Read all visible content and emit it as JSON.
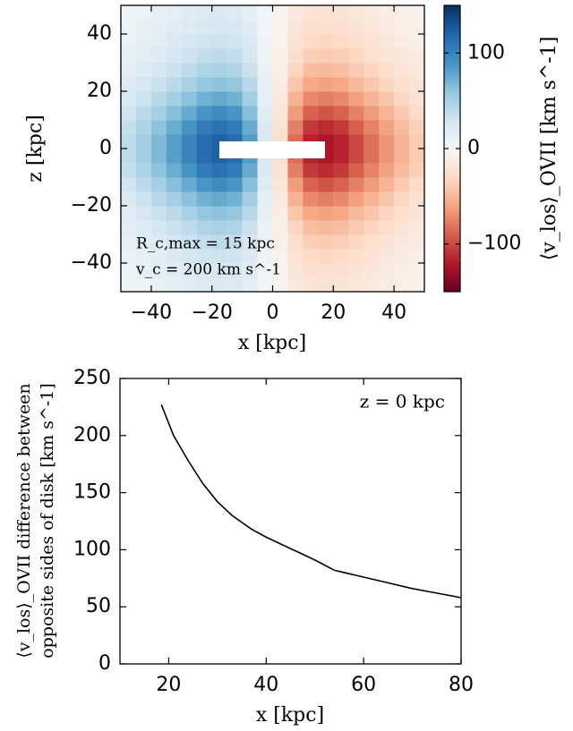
{
  "chart_data": [
    {
      "type": "heatmap",
      "xlabel": "x [kpc]",
      "ylabel": "z [kpc]",
      "colorbar_label": "⟨v_los⟩_OVII [km s^-1]",
      "annotations": [
        "R_c,max = 15 kpc",
        "v_c = 200 km s^-1"
      ],
      "xlim": [
        -50,
        50
      ],
      "ylim": [
        -50,
        50
      ],
      "xticks": [
        {
          "value": -40,
          "label": "−40"
        },
        {
          "value": -20,
          "label": "−20"
        },
        0,
        20,
        40
      ],
      "yticks": [
        {
          "value": -40,
          "label": "−40"
        },
        {
          "value": -20,
          "label": "−20"
        },
        0,
        20,
        40
      ],
      "clim": [
        -150,
        150
      ],
      "cticks": [
        {
          "value": -100,
          "label": "−100"
        },
        0,
        100
      ],
      "colormap": [
        "#67001f",
        "#b2182b",
        "#d6604d",
        "#f4a582",
        "#fddbc7",
        "#f7f7f7",
        "#d1e5f0",
        "#92c5de",
        "#4393c3",
        "#2166ac",
        "#053061"
      ],
      "x": [
        -47.5,
        -42.5,
        -37.5,
        -32.5,
        -27.5,
        -22.5,
        -17.5,
        -12.5,
        -7.5,
        -2.5,
        2.5,
        7.5,
        12.5,
        17.5,
        22.5,
        27.5,
        32.5,
        37.5,
        42.5,
        47.5
      ],
      "y": [
        -47.5,
        -42.5,
        -37.5,
        -32.5,
        -27.5,
        -22.5,
        -17.5,
        -12.5,
        -7.5,
        -2.5,
        2.5,
        7.5,
        12.5,
        17.5,
        22.5,
        27.5,
        32.5,
        37.5,
        42.5,
        47.5
      ],
      "values": [
        [
          7,
          9,
          12,
          15,
          18,
          21,
          22,
          21,
          15,
          4,
          -4,
          -15,
          -21,
          -22,
          -21,
          -18,
          -15,
          -12,
          -9,
          -7
        ],
        [
          8,
          11,
          14,
          18,
          21,
          25,
          26,
          25,
          18,
          5,
          -5,
          -18,
          -25,
          -26,
          -25,
          -21,
          -18,
          -14,
          -11,
          -8
        ],
        [
          10,
          14,
          17,
          22,
          26,
          30,
          32,
          30,
          22,
          6,
          -6,
          -22,
          -30,
          -32,
          -30,
          -26,
          -22,
          -17,
          -14,
          -10
        ],
        [
          13,
          17,
          21,
          26,
          32,
          37,
          39,
          37,
          27,
          8,
          -8,
          -27,
          -37,
          -39,
          -37,
          -32,
          -26,
          -21,
          -17,
          -13
        ],
        [
          16,
          21,
          27,
          33,
          39,
          46,
          49,
          46,
          33,
          10,
          -10,
          -33,
          -46,
          -49,
          -46,
          -39,
          -33,
          -27,
          -21,
          -16
        ],
        [
          20,
          26,
          33,
          41,
          49,
          58,
          61,
          58,
          42,
          12,
          -12,
          -42,
          -58,
          -61,
          -58,
          -49,
          -41,
          -33,
          -26,
          -20
        ],
        [
          24,
          32,
          42,
          51,
          62,
          72,
          77,
          72,
          52,
          15,
          -15,
          -52,
          -72,
          -77,
          -72,
          -62,
          -51,
          -42,
          -32,
          -24
        ],
        [
          30,
          40,
          51,
          64,
          76,
          89,
          95,
          89,
          64,
          19,
          -19,
          -64,
          -89,
          -95,
          -89,
          -76,
          -64,
          -51,
          -40,
          -30
        ],
        [
          36,
          47,
          61,
          75,
          90,
          106,
          112,
          106,
          76,
          22,
          -22,
          -76,
          -106,
          -112,
          -106,
          -90,
          -75,
          -61,
          -47,
          -36
        ],
        [
          39,
          52,
          67,
          83,
          100,
          116,
          123,
          116,
          84,
          25,
          -25,
          -84,
          -116,
          -123,
          -116,
          -100,
          -83,
          -67,
          -52,
          -39
        ],
        [
          39,
          52,
          67,
          83,
          100,
          116,
          123,
          116,
          84,
          25,
          -25,
          -84,
          -116,
          -123,
          -116,
          -100,
          -83,
          -67,
          -52,
          -39
        ],
        [
          36,
          47,
          61,
          75,
          90,
          106,
          112,
          106,
          76,
          22,
          -22,
          -76,
          -106,
          -112,
          -106,
          -90,
          -75,
          -61,
          -47,
          -36
        ],
        [
          30,
          40,
          51,
          64,
          76,
          89,
          95,
          89,
          64,
          19,
          -19,
          -64,
          -89,
          -95,
          -89,
          -76,
          -64,
          -51,
          -40,
          -30
        ],
        [
          24,
          32,
          42,
          51,
          62,
          72,
          77,
          72,
          52,
          15,
          -15,
          -52,
          -72,
          -77,
          -72,
          -62,
          -51,
          -42,
          -32,
          -24
        ],
        [
          20,
          26,
          33,
          41,
          49,
          58,
          61,
          58,
          42,
          12,
          -12,
          -42,
          -58,
          -61,
          -58,
          -49,
          -41,
          -33,
          -26,
          -20
        ],
        [
          16,
          21,
          27,
          33,
          39,
          46,
          49,
          46,
          33,
          10,
          -10,
          -33,
          -46,
          -49,
          -46,
          -39,
          -33,
          -27,
          -21,
          -16
        ],
        [
          13,
          17,
          21,
          26,
          32,
          37,
          39,
          37,
          27,
          8,
          -8,
          -27,
          -37,
          -39,
          -37,
          -32,
          -26,
          -21,
          -17,
          -13
        ],
        [
          10,
          14,
          17,
          22,
          26,
          30,
          32,
          30,
          22,
          6,
          -6,
          -22,
          -30,
          -32,
          -30,
          -26,
          -22,
          -17,
          -14,
          -10
        ],
        [
          8,
          11,
          14,
          18,
          21,
          25,
          26,
          25,
          18,
          5,
          -5,
          -18,
          -25,
          -26,
          -25,
          -21,
          -18,
          -14,
          -11,
          -8
        ],
        [
          7,
          9,
          12,
          15,
          18,
          21,
          22,
          21,
          15,
          4,
          -4,
          -15,
          -21,
          -22,
          -21,
          -18,
          -15,
          -12,
          -9,
          -7
        ]
      ]
    },
    {
      "type": "line",
      "xlabel": "x [kpc]",
      "ylabel": [
        "⟨v_los⟩_OVII difference between",
        "opposite sides of disk [km s^-1]"
      ],
      "annotation": "z = 0 kpc",
      "color": "#000000",
      "xlim": [
        10,
        80
      ],
      "ylim": [
        0,
        250
      ],
      "xticks": [
        20,
        40,
        60,
        80
      ],
      "yticks": [
        0,
        50,
        100,
        150,
        200,
        250
      ],
      "x": [
        18.5,
        21,
        24,
        27,
        30,
        33,
        37,
        40,
        45,
        50,
        54,
        60,
        65,
        70,
        75,
        80
      ],
      "values": [
        227,
        200,
        178,
        158,
        142,
        130,
        118,
        111,
        101,
        91,
        82,
        76,
        71,
        66,
        62,
        58
      ]
    }
  ]
}
